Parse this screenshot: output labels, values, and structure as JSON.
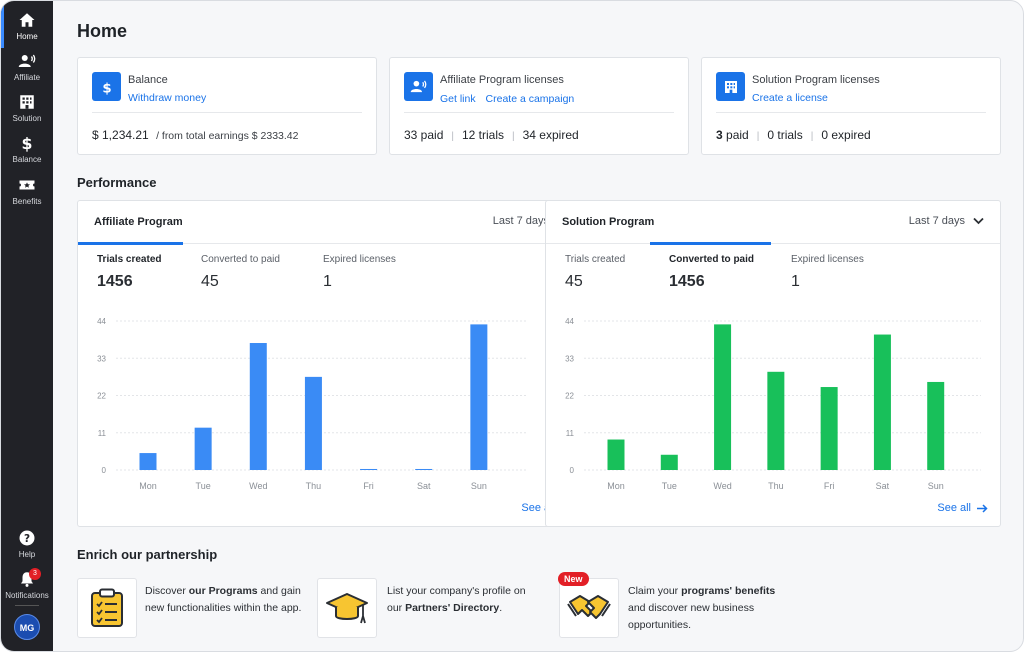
{
  "sidebar": {
    "items": [
      {
        "label": "Home",
        "icon": "home-icon",
        "active": true
      },
      {
        "label": "Affiliate",
        "icon": "affiliate-icon"
      },
      {
        "label": "Solution",
        "icon": "building-icon"
      },
      {
        "label": "Balance",
        "icon": "dollar-icon"
      },
      {
        "label": "Benefits",
        "icon": "ticket-icon"
      }
    ],
    "help_label": "Help",
    "notifications_label": "Notifications",
    "notifications_count": "3",
    "avatar_initials": "MG"
  },
  "page_title": "Home",
  "summary": {
    "balance": {
      "title": "Balance",
      "link": "Withdraw money",
      "amount": "$ 1,234.21",
      "sub": "/ from total earnings $ 2333.42"
    },
    "affiliate": {
      "title": "Affiliate Program licenses",
      "links": [
        "Get link",
        "Create a campaign"
      ],
      "stats": [
        "33 paid",
        "12 trials",
        "34 expired"
      ]
    },
    "solution": {
      "title": "Solution Program licenses",
      "links": [
        "Create a license"
      ],
      "stats_num": [
        "3",
        "0",
        "0"
      ],
      "stats_word": [
        "paid",
        "trials",
        "expired"
      ]
    }
  },
  "performance": {
    "title": "Performance",
    "range_label": "Last 7 days",
    "see_all": "See all",
    "affiliate": {
      "title": "Affiliate Program",
      "metrics": [
        {
          "label": "Trials created",
          "value": "1456",
          "active": true
        },
        {
          "label": "Converted to paid",
          "value": "45"
        },
        {
          "label": "Expired licenses",
          "value": "1"
        }
      ]
    },
    "solution": {
      "title": "Solution Program",
      "metrics": [
        {
          "label": "Trials created",
          "value": "45"
        },
        {
          "label": "Converted to paid",
          "value": "1456",
          "active": true
        },
        {
          "label": "Expired licenses",
          "value": "1"
        }
      ]
    }
  },
  "enrich": {
    "title": "Enrich our partnership",
    "new_label": "New",
    "items": [
      {
        "icon": "clipboard-icon",
        "pre": "Discover ",
        "bold": "our Programs",
        "post": " and gain new functionalities within the app."
      },
      {
        "icon": "graduation-cap-icon",
        "pre": "List your company's profile on our ",
        "bold": "Partners' Directory",
        "post": "."
      },
      {
        "icon": "handshake-icon",
        "pre": "Claim your ",
        "bold": "programs' benefits",
        "post": " and discover new business opportunities."
      }
    ]
  },
  "colors": {
    "accent": "#1a73e8",
    "affiliate_bar": "#3a8bf5",
    "solution_bar": "#18c05a",
    "sidebar_bg": "#212227",
    "badge_red": "#e21f26"
  },
  "chart_data": [
    {
      "type": "bar",
      "title": "Affiliate Program",
      "categories": [
        "Mon",
        "Tue",
        "Wed",
        "Thu",
        "Fri",
        "Sat",
        "Sun"
      ],
      "values": [
        5,
        12.5,
        37.5,
        27.5,
        0.3,
        0.3,
        43
      ],
      "ylim": [
        0,
        44
      ],
      "yticks": [
        0,
        11,
        22,
        33,
        44
      ],
      "grid": true
    },
    {
      "type": "bar",
      "title": "Solution Program",
      "categories": [
        "Mon",
        "Tue",
        "Wed",
        "Thu",
        "Fri",
        "Sat",
        "Sun"
      ],
      "values": [
        9,
        4.5,
        43,
        29,
        24.5,
        40,
        26
      ],
      "ylim": [
        0,
        44
      ],
      "yticks": [
        0,
        11,
        22,
        33,
        44
      ],
      "grid": true
    }
  ]
}
